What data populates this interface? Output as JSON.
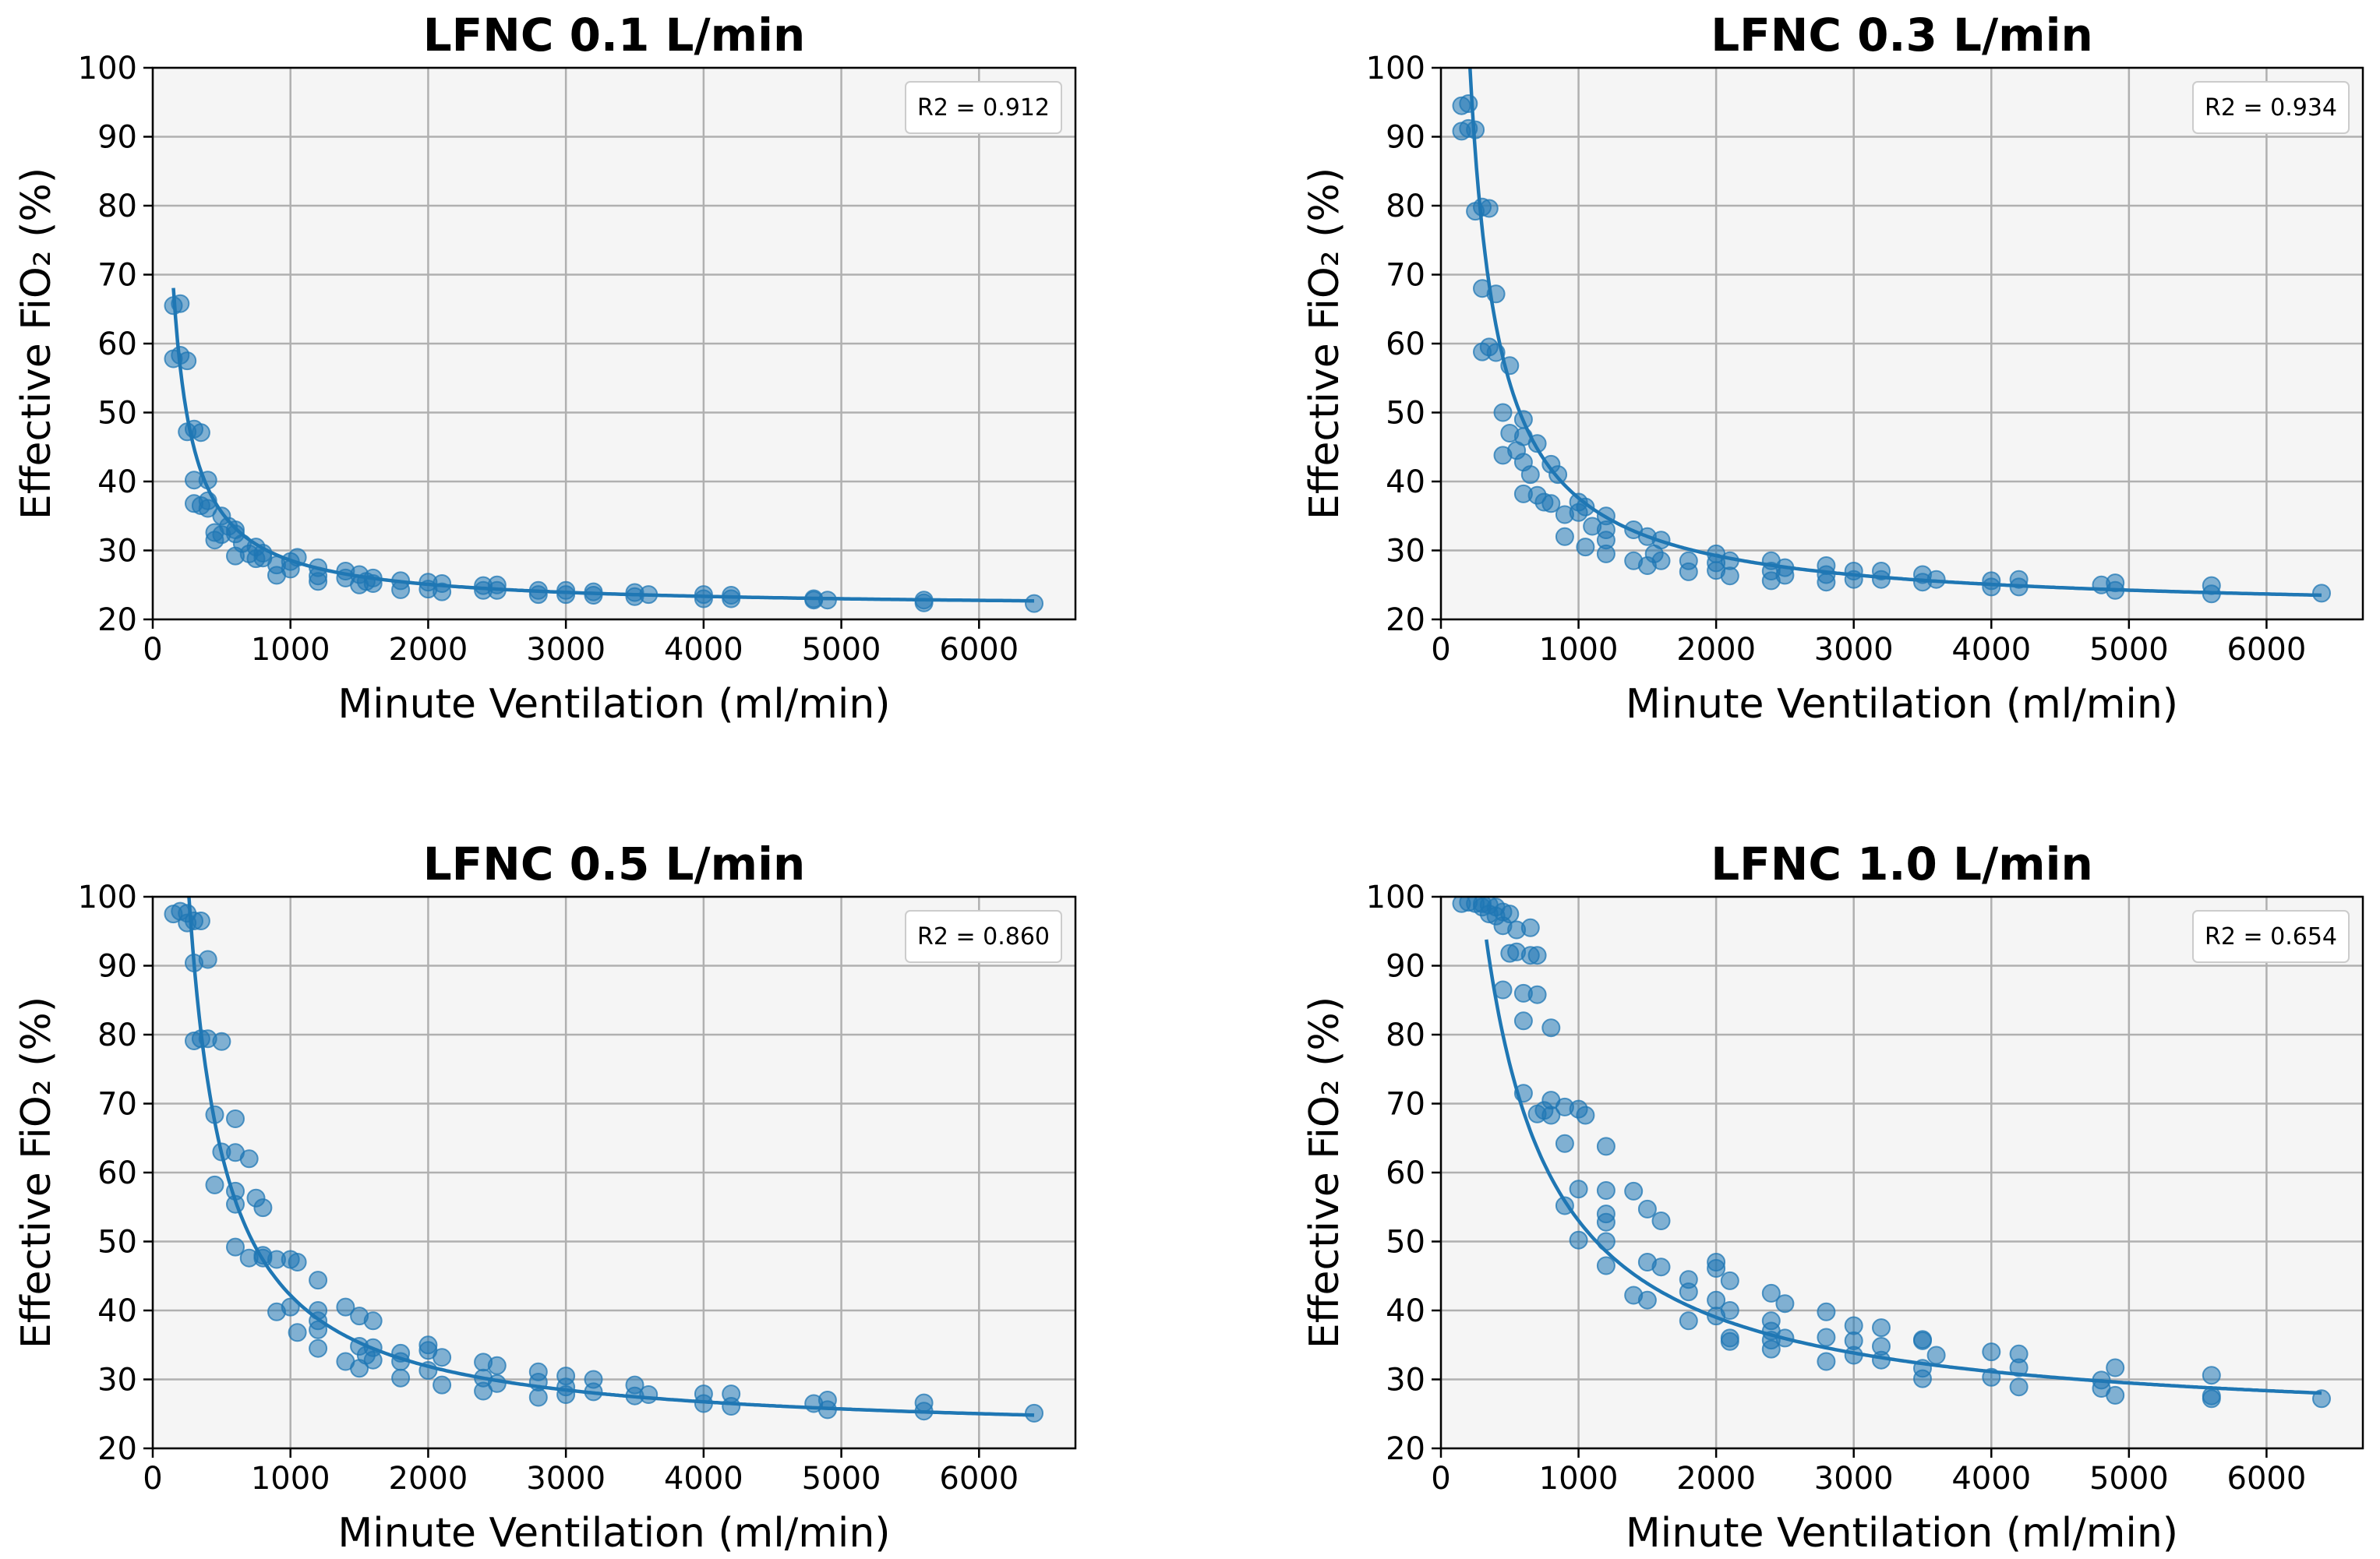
{
  "figure": {
    "layout": "2x2"
  },
  "chart_data": [
    {
      "type": "scatter",
      "title": "LFNC 0.1 L/min",
      "xlabel": "Minute Ventilation (ml/min)",
      "ylabel": "Effective FiO₂ (%)",
      "xlim": [
        0,
        6700
      ],
      "ylim": [
        20,
        100
      ],
      "xticks": [
        0,
        1000,
        2000,
        3000,
        4000,
        5000,
        6000
      ],
      "yticks": [
        20,
        30,
        40,
        50,
        60,
        70,
        80,
        90,
        100
      ],
      "grid": true,
      "r2_label": "R2 = 0.912",
      "legend_position": "top-right",
      "point_color": "#1f77b4",
      "fit": {
        "model": "a/x+b",
        "a": 6970,
        "b": 21.6,
        "x_start": 150,
        "x_end": 6400
      },
      "points": [
        [
          150,
          65.5
        ],
        [
          200,
          65.8
        ],
        [
          150,
          57.8
        ],
        [
          200,
          58.3
        ],
        [
          250,
          57.5
        ],
        [
          250,
          47.2
        ],
        [
          300,
          47.6
        ],
        [
          350,
          47.1
        ],
        [
          300,
          40.2
        ],
        [
          400,
          40.2
        ],
        [
          300,
          36.8
        ],
        [
          350,
          36.5
        ],
        [
          400,
          37.2
        ],
        [
          400,
          36.1
        ],
        [
          450,
          31.5
        ],
        [
          450,
          32.6
        ],
        [
          500,
          32.3
        ],
        [
          500,
          35
        ],
        [
          550,
          33.5
        ],
        [
          600,
          33
        ],
        [
          600,
          32.4
        ],
        [
          600,
          29.2
        ],
        [
          650,
          31
        ],
        [
          700,
          29.5
        ],
        [
          750,
          30.5
        ],
        [
          750,
          28.8
        ],
        [
          800,
          28.9
        ],
        [
          800,
          29.6
        ],
        [
          900,
          27.9
        ],
        [
          900,
          26.4
        ],
        [
          1000,
          27.3
        ],
        [
          1000,
          28.4
        ],
        [
          1050,
          29
        ],
        [
          1200,
          27.5
        ],
        [
          1200,
          26.3
        ],
        [
          1200,
          25.5
        ],
        [
          1400,
          27
        ],
        [
          1400,
          26
        ],
        [
          1500,
          25
        ],
        [
          1500,
          26.5
        ],
        [
          1550,
          25.5
        ],
        [
          1600,
          26
        ],
        [
          1600,
          25.2
        ],
        [
          1800,
          25.6
        ],
        [
          1800,
          24.3
        ],
        [
          2000,
          25.4
        ],
        [
          2000,
          24.4
        ],
        [
          2100,
          25.2
        ],
        [
          2100,
          24
        ],
        [
          2400,
          24.2
        ],
        [
          2400,
          24.9
        ],
        [
          2500,
          24.2
        ],
        [
          2500,
          25
        ],
        [
          2800,
          24.2
        ],
        [
          2800,
          23.6
        ],
        [
          3000,
          24.2
        ],
        [
          3000,
          23.6
        ],
        [
          3200,
          23.5
        ],
        [
          3200,
          24
        ],
        [
          3500,
          23.3
        ],
        [
          3500,
          23.9
        ],
        [
          3600,
          23.6
        ],
        [
          4000,
          23
        ],
        [
          4000,
          23.6
        ],
        [
          4200,
          23
        ],
        [
          4200,
          23.5
        ],
        [
          4800,
          22.8
        ],
        [
          4800,
          23
        ],
        [
          4900,
          22.8
        ],
        [
          5600,
          22.4
        ],
        [
          5600,
          22.8
        ],
        [
          6400,
          22.3
        ]
      ]
    },
    {
      "type": "scatter",
      "title": "LFNC 0.3 L/min",
      "xlabel": "Minute Ventilation (ml/min)",
      "ylabel": "Effective FiO₂ (%)",
      "xlim": [
        0,
        6700
      ],
      "ylim": [
        20,
        100
      ],
      "xticks": [
        0,
        1000,
        2000,
        3000,
        4000,
        5000,
        6000
      ],
      "yticks": [
        20,
        30,
        40,
        50,
        60,
        70,
        80,
        90,
        100
      ],
      "grid": true,
      "r2_label": "R2 = 0.934",
      "legend_position": "top-right",
      "point_color": "#1f77b4",
      "fit": {
        "model": "a/x+b",
        "a": 16700,
        "b": 20.9,
        "x_start": 165,
        "x_end": 6400
      },
      "points": [
        [
          150,
          94.5
        ],
        [
          200,
          94.8
        ],
        [
          150,
          90.8
        ],
        [
          200,
          91.2
        ],
        [
          250,
          91
        ],
        [
          250,
          79.2
        ],
        [
          300,
          79.8
        ],
        [
          350,
          79.6
        ],
        [
          300,
          68
        ],
        [
          400,
          67.2
        ],
        [
          300,
          58.8
        ],
        [
          350,
          59.5
        ],
        [
          400,
          58.7
        ],
        [
          450,
          50
        ],
        [
          450,
          43.8
        ],
        [
          500,
          56.8
        ],
        [
          500,
          47
        ],
        [
          550,
          44.5
        ],
        [
          600,
          49
        ],
        [
          600,
          46.5
        ],
        [
          600,
          42.8
        ],
        [
          600,
          38.2
        ],
        [
          650,
          41
        ],
        [
          700,
          45.5
        ],
        [
          700,
          38
        ],
        [
          750,
          37
        ],
        [
          800,
          42.5
        ],
        [
          800,
          36.8
        ],
        [
          850,
          41
        ],
        [
          900,
          35.2
        ],
        [
          900,
          32
        ],
        [
          1000,
          37
        ],
        [
          1000,
          35.5
        ],
        [
          1050,
          36.3
        ],
        [
          1050,
          30.5
        ],
        [
          1100,
          33.5
        ],
        [
          1200,
          35
        ],
        [
          1200,
          33
        ],
        [
          1200,
          31.5
        ],
        [
          1200,
          29.5
        ],
        [
          1400,
          33
        ],
        [
          1400,
          28.5
        ],
        [
          1500,
          32
        ],
        [
          1500,
          27.8
        ],
        [
          1550,
          29.5
        ],
        [
          1600,
          31.5
        ],
        [
          1600,
          28.5
        ],
        [
          1800,
          28.5
        ],
        [
          1800,
          26.9
        ],
        [
          2000,
          29.5
        ],
        [
          2000,
          28.2
        ],
        [
          2000,
          27.1
        ],
        [
          2100,
          28.5
        ],
        [
          2100,
          26.3
        ],
        [
          2400,
          28.5
        ],
        [
          2400,
          27
        ],
        [
          2400,
          25.6
        ],
        [
          2500,
          27.5
        ],
        [
          2500,
          26.4
        ],
        [
          2800,
          27.8
        ],
        [
          2800,
          26.5
        ],
        [
          2800,
          25.4
        ],
        [
          3000,
          27
        ],
        [
          3000,
          25.8
        ],
        [
          3200,
          27
        ],
        [
          3200,
          25.8
        ],
        [
          3500,
          26.5
        ],
        [
          3500,
          25.4
        ],
        [
          3600,
          25.8
        ],
        [
          4000,
          25.6
        ],
        [
          4000,
          24.7
        ],
        [
          4200,
          25.8
        ],
        [
          4200,
          24.7
        ],
        [
          4800,
          25
        ],
        [
          4900,
          25.3
        ],
        [
          4900,
          24.2
        ],
        [
          5600,
          24.9
        ],
        [
          5600,
          23.7
        ],
        [
          6400,
          23.8
        ]
      ]
    },
    {
      "type": "scatter",
      "title": "LFNC 0.5 L/min",
      "xlabel": "Minute Ventilation (ml/min)",
      "ylabel": "Effective FiO₂ (%)",
      "xlim": [
        0,
        6700
      ],
      "ylim": [
        20,
        100
      ],
      "xticks": [
        0,
        1000,
        2000,
        3000,
        4000,
        5000,
        6000
      ],
      "yticks": [
        20,
        30,
        40,
        50,
        60,
        70,
        80,
        90,
        100
      ],
      "grid": true,
      "r2_label": "R2 = 0.860",
      "legend_position": "top-right",
      "point_color": "#1f77b4",
      "fit": {
        "model": "a/x+b",
        "a": 20600,
        "b": 21.6,
        "x_start": 260,
        "x_end": 6400
      },
      "points": [
        [
          150,
          97.5
        ],
        [
          200,
          97.9
        ],
        [
          250,
          97.6
        ],
        [
          250,
          96.2
        ],
        [
          300,
          96.5
        ],
        [
          350,
          96.5
        ],
        [
          300,
          90.4
        ],
        [
          400,
          90.9
        ],
        [
          300,
          79.1
        ],
        [
          350,
          79.4
        ],
        [
          400,
          79.4
        ],
        [
          500,
          79
        ],
        [
          450,
          68.4
        ],
        [
          600,
          67.8
        ],
        [
          450,
          58.2
        ],
        [
          500,
          63
        ],
        [
          600,
          62.9
        ],
        [
          700,
          62
        ],
        [
          600,
          57.3
        ],
        [
          600,
          55.4
        ],
        [
          750,
          56.3
        ],
        [
          800,
          54.9
        ],
        [
          600,
          49.2
        ],
        [
          700,
          47.6
        ],
        [
          800,
          47.6
        ],
        [
          800,
          48
        ],
        [
          900,
          47.4
        ],
        [
          1000,
          47.4
        ],
        [
          1050,
          47
        ],
        [
          900,
          39.8
        ],
        [
          1000,
          40.5
        ],
        [
          1050,
          36.8
        ],
        [
          1200,
          44.4
        ],
        [
          1200,
          40
        ],
        [
          1200,
          38.5
        ],
        [
          1200,
          37.2
        ],
        [
          1200,
          34.5
        ],
        [
          1400,
          40.5
        ],
        [
          1400,
          32.6
        ],
        [
          1500,
          39.2
        ],
        [
          1500,
          34.8
        ],
        [
          1500,
          31.6
        ],
        [
          1550,
          33.5
        ],
        [
          1600,
          38.5
        ],
        [
          1600,
          34.6
        ],
        [
          1600,
          32.8
        ],
        [
          1800,
          33.8
        ],
        [
          1800,
          32.6
        ],
        [
          1800,
          30.2
        ],
        [
          2000,
          35
        ],
        [
          2000,
          34.2
        ],
        [
          2000,
          31.3
        ],
        [
          2100,
          33.2
        ],
        [
          2100,
          29.2
        ],
        [
          2400,
          32.5
        ],
        [
          2400,
          30.2
        ],
        [
          2400,
          28.3
        ],
        [
          2500,
          32
        ],
        [
          2500,
          29.4
        ],
        [
          2800,
          31.1
        ],
        [
          2800,
          29.6
        ],
        [
          2800,
          27.4
        ],
        [
          3000,
          30.5
        ],
        [
          3000,
          28.9
        ],
        [
          3000,
          27.8
        ],
        [
          3200,
          30
        ],
        [
          3200,
          28.2
        ],
        [
          3500,
          29.2
        ],
        [
          3500,
          27.6
        ],
        [
          3600,
          27.8
        ],
        [
          4000,
          27.9
        ],
        [
          4000,
          26.5
        ],
        [
          4200,
          27.9
        ],
        [
          4200,
          26.1
        ],
        [
          4800,
          26.5
        ],
        [
          4900,
          27
        ],
        [
          4900,
          25.6
        ],
        [
          5600,
          26.6
        ],
        [
          5600,
          25.4
        ],
        [
          6400,
          25.1
        ]
      ]
    },
    {
      "type": "scatter",
      "title": "LFNC 1.0 L/min",
      "xlabel": "Minute Ventilation (ml/min)",
      "ylabel": "Effective FiO₂ (%)",
      "xlim": [
        0,
        6700
      ],
      "ylim": [
        20,
        100
      ],
      "xticks": [
        0,
        1000,
        2000,
        3000,
        4000,
        5000,
        6000
      ],
      "yticks": [
        20,
        30,
        40,
        50,
        60,
        70,
        80,
        90,
        100
      ],
      "grid": true,
      "r2_label": "R2 = 0.654",
      "legend_position": "top-right",
      "point_color": "#1f77b4",
      "fit": {
        "model": "a/(x-c)+b",
        "a": 35600,
        "b": 22.6,
        "c": -170,
        "x_start": 330,
        "x_end": 6400
      },
      "points": [
        [
          150,
          99
        ],
        [
          200,
          99.2
        ],
        [
          250,
          99
        ],
        [
          300,
          99
        ],
        [
          300,
          98.5
        ],
        [
          350,
          98.8
        ],
        [
          400,
          98.5
        ],
        [
          350,
          97.5
        ],
        [
          400,
          97.2
        ],
        [
          450,
          97.8
        ],
        [
          500,
          97.5
        ],
        [
          450,
          95.8
        ],
        [
          550,
          95.2
        ],
        [
          650,
          95.5
        ],
        [
          500,
          91.8
        ],
        [
          550,
          92
        ],
        [
          650,
          91.5
        ],
        [
          700,
          91.5
        ],
        [
          450,
          86.5
        ],
        [
          600,
          86
        ],
        [
          700,
          85.8
        ],
        [
          600,
          82
        ],
        [
          800,
          81
        ],
        [
          600,
          71.5
        ],
        [
          700,
          68.5
        ],
        [
          750,
          69
        ],
        [
          800,
          70.5
        ],
        [
          900,
          69.5
        ],
        [
          1000,
          69.2
        ],
        [
          1050,
          68.3
        ],
        [
          800,
          68.3
        ],
        [
          900,
          64.2
        ],
        [
          1200,
          63.8
        ],
        [
          900,
          55.2
        ],
        [
          1000,
          57.6
        ],
        [
          1200,
          57.4
        ],
        [
          1400,
          57.3
        ],
        [
          1200,
          54
        ],
        [
          1200,
          52.8
        ],
        [
          1500,
          54.7
        ],
        [
          1600,
          53
        ],
        [
          1000,
          50.2
        ],
        [
          1200,
          50
        ],
        [
          1200,
          46.5
        ],
        [
          1500,
          47
        ],
        [
          1600,
          46.3
        ],
        [
          1400,
          42.2
        ],
        [
          1500,
          41.5
        ],
        [
          1800,
          44.5
        ],
        [
          1800,
          42.7
        ],
        [
          1800,
          38.5
        ],
        [
          2000,
          47
        ],
        [
          2000,
          46.1
        ],
        [
          2000,
          41.5
        ],
        [
          2000,
          39.2
        ],
        [
          2100,
          44.3
        ],
        [
          2100,
          40
        ],
        [
          2100,
          36
        ],
        [
          2100,
          35.5
        ],
        [
          2400,
          42.5
        ],
        [
          2400,
          38.5
        ],
        [
          2400,
          37
        ],
        [
          2400,
          35.7
        ],
        [
          2400,
          34.4
        ],
        [
          2500,
          41
        ],
        [
          2500,
          36
        ],
        [
          2800,
          39.8
        ],
        [
          2800,
          36.1
        ],
        [
          2800,
          32.6
        ],
        [
          3000,
          37.8
        ],
        [
          3000,
          35.6
        ],
        [
          3000,
          33.5
        ],
        [
          3200,
          37.5
        ],
        [
          3200,
          34.8
        ],
        [
          3200,
          32.8
        ],
        [
          3500,
          35.8
        ],
        [
          3500,
          35.6
        ],
        [
          3500,
          31.6
        ],
        [
          3500,
          30.1
        ],
        [
          3600,
          33.5
        ],
        [
          4000,
          34
        ],
        [
          4000,
          30.3
        ],
        [
          4200,
          33.7
        ],
        [
          4200,
          31.7
        ],
        [
          4200,
          28.9
        ],
        [
          4800,
          29.9
        ],
        [
          4800,
          28.7
        ],
        [
          4900,
          31.7
        ],
        [
          4900,
          27.7
        ],
        [
          5600,
          30.6
        ],
        [
          5600,
          27.6
        ],
        [
          5600,
          27.2
        ],
        [
          6400,
          27.2
        ]
      ]
    }
  ]
}
